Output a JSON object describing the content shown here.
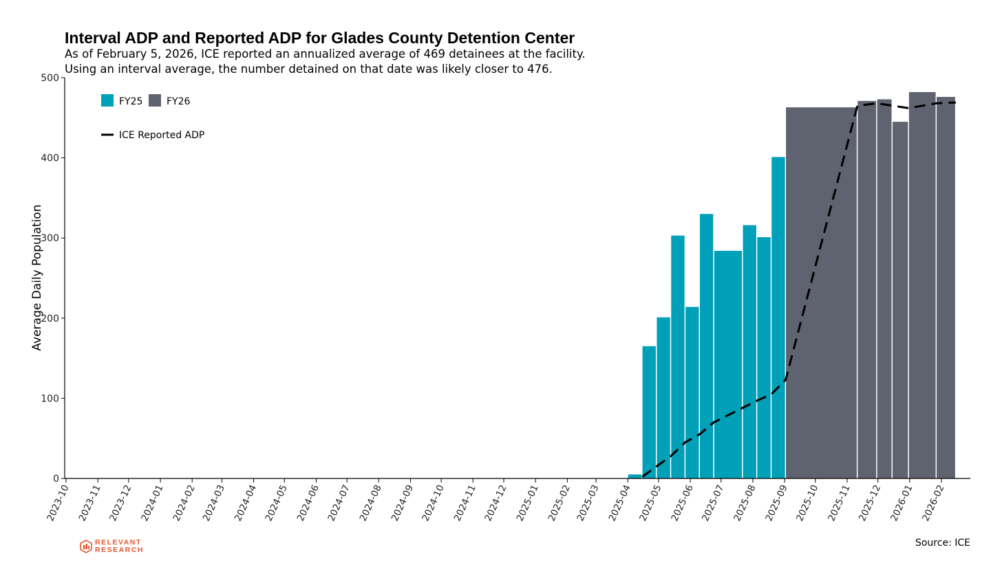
{
  "title": "Interval ADP and Reported ADP for Glades County Detention Center",
  "subtitle_lines": [
    "As of February 5, 2026, ICE reported an annualized average of 469 detainees at the facility.",
    "Using an interval average, the number detained on that date was likely closer to 476."
  ],
  "source": "Source: ICE",
  "logo": {
    "line1": "RELEVANT",
    "line2": "RESEARCH",
    "icon": "relevant-research-logo",
    "color": "#e4572e"
  },
  "chart_data": {
    "type": "bar",
    "ylabel": "Average Daily Population",
    "ylim": [
      0,
      500
    ],
    "yticks": [
      0,
      100,
      200,
      300,
      400,
      500
    ],
    "xlim": [
      "2023-10-01",
      "2026-02-28"
    ],
    "xticks": [
      "2023-10",
      "2023-11",
      "2023-12",
      "2024-01",
      "2024-02",
      "2024-03",
      "2024-04",
      "2024-05",
      "2024-06",
      "2024-07",
      "2024-08",
      "2024-09",
      "2024-10",
      "2024-11",
      "2024-12",
      "2025-01",
      "2025-02",
      "2025-03",
      "2025-04",
      "2025-05",
      "2025-06",
      "2025-07",
      "2025-08",
      "2025-09",
      "2025-10",
      "2025-11",
      "2025-12",
      "2026-01",
      "2026-02"
    ],
    "legend": {
      "position": "top-left",
      "bar_entries": [
        "FY25",
        "FY26"
      ],
      "line_entry": "ICE Reported ADP"
    },
    "colors": {
      "FY25": "#00a0b8",
      "FY26": "#5f626f",
      "line": "#000000"
    },
    "grid": false,
    "series": [
      {
        "name": "FY25",
        "style": "bars",
        "bars": [
          {
            "start": "2025-04-01",
            "end": "2025-04-15",
            "value": 5
          },
          {
            "start": "2025-04-15",
            "end": "2025-04-29",
            "value": 165
          },
          {
            "start": "2025-04-29",
            "end": "2025-05-13",
            "value": 201
          },
          {
            "start": "2025-05-13",
            "end": "2025-05-27",
            "value": 303
          },
          {
            "start": "2025-05-27",
            "end": "2025-06-10",
            "value": 214
          },
          {
            "start": "2025-06-10",
            "end": "2025-06-24",
            "value": 330
          },
          {
            "start": "2025-06-24",
            "end": "2025-07-22",
            "value": 284
          },
          {
            "start": "2025-07-22",
            "end": "2025-08-05",
            "value": 316
          },
          {
            "start": "2025-08-05",
            "end": "2025-08-19",
            "value": 301
          },
          {
            "start": "2025-08-19",
            "end": "2025-09-02",
            "value": 401
          }
        ]
      },
      {
        "name": "FY26",
        "style": "bars",
        "bars": [
          {
            "start": "2025-09-02",
            "end": "2025-11-11",
            "value": 463
          },
          {
            "start": "2025-11-11",
            "end": "2025-11-30",
            "value": 471
          },
          {
            "start": "2025-11-30",
            "end": "2025-12-15",
            "value": 473
          },
          {
            "start": "2025-12-15",
            "end": "2025-12-31",
            "value": 445
          },
          {
            "start": "2025-12-31",
            "end": "2026-01-27",
            "value": 482
          },
          {
            "start": "2026-01-27",
            "end": "2026-02-15",
            "value": 476
          }
        ]
      },
      {
        "name": "ICE Reported ADP",
        "style": "dashed-line",
        "points": [
          {
            "x": "2025-04-15",
            "y": 2
          },
          {
            "x": "2025-05-13",
            "y": 28
          },
          {
            "x": "2025-05-27",
            "y": 45
          },
          {
            "x": "2025-06-10",
            "y": 55
          },
          {
            "x": "2025-06-24",
            "y": 70
          },
          {
            "x": "2025-07-22",
            "y": 88
          },
          {
            "x": "2025-08-05",
            "y": 97
          },
          {
            "x": "2025-08-19",
            "y": 105
          },
          {
            "x": "2025-09-02",
            "y": 123
          },
          {
            "x": "2025-11-11",
            "y": 465
          },
          {
            "x": "2025-11-30",
            "y": 468
          },
          {
            "x": "2025-12-31",
            "y": 462
          },
          {
            "x": "2026-01-27",
            "y": 468
          },
          {
            "x": "2026-02-15",
            "y": 469
          }
        ]
      }
    ]
  }
}
